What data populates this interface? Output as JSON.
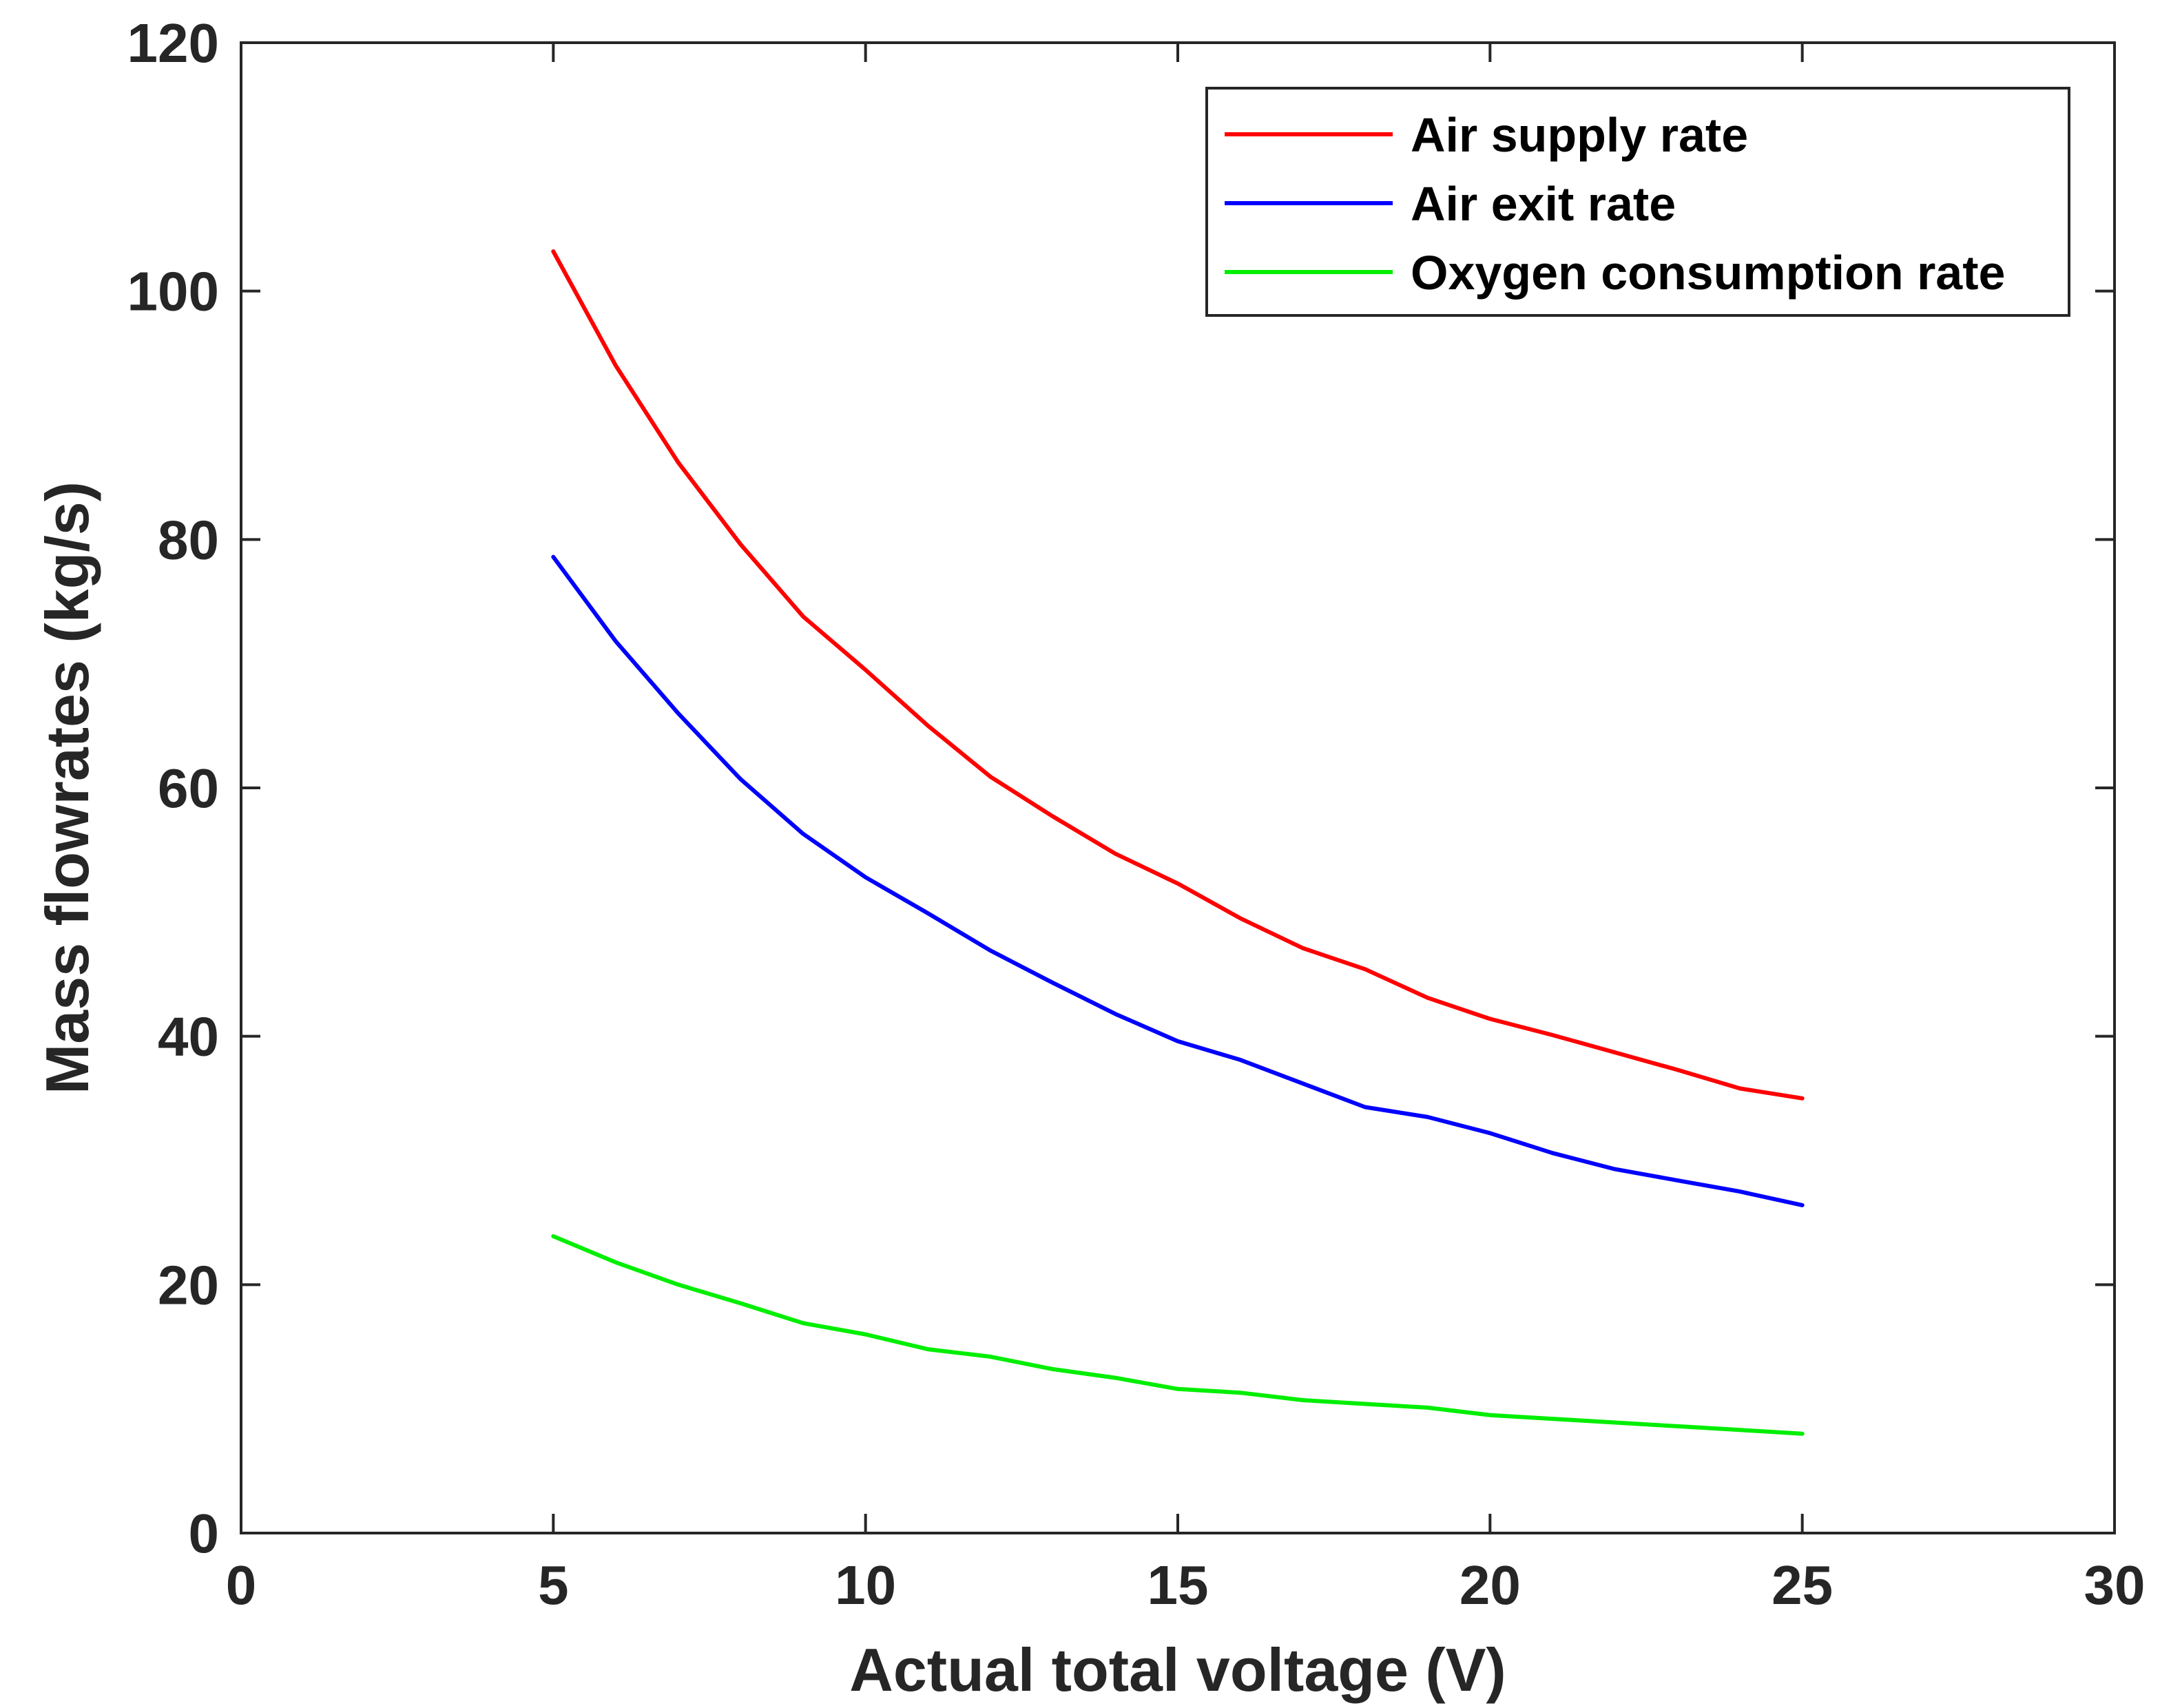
{
  "chart_data": {
    "type": "line",
    "title": "",
    "xlabel": "Actual total voltage (V)",
    "ylabel": "Mass flowrates (kg/s)",
    "xlim": [
      0,
      30
    ],
    "ylim": [
      0,
      120
    ],
    "xticks": [
      "0",
      "5",
      "10",
      "15",
      "20",
      "25",
      "30"
    ],
    "yticks": [
      "0",
      "20",
      "40",
      "60",
      "80",
      "100",
      "120"
    ],
    "grid": false,
    "legend_position": "top-right",
    "x": [
      5,
      6,
      7,
      8,
      9,
      10,
      11,
      12,
      13,
      14,
      15,
      16,
      17,
      18,
      19,
      20,
      21,
      22,
      23,
      24,
      25
    ],
    "series": [
      {
        "name": "Air supply rate",
        "color": "#ff0000",
        "values": [
          103.2,
          94.0,
          86.2,
          79.6,
          73.8,
          69.5,
          65.0,
          60.9,
          57.7,
          54.7,
          52.3,
          49.5,
          47.1,
          45.4,
          43.1,
          41.4,
          40.1,
          38.7,
          37.3,
          35.8,
          35.0
        ]
      },
      {
        "name": "Air exit rate",
        "color": "#0000ff",
        "values": [
          78.6,
          71.8,
          66.0,
          60.7,
          56.3,
          52.8,
          49.9,
          46.9,
          44.3,
          41.8,
          39.6,
          38.1,
          36.2,
          34.3,
          33.5,
          32.2,
          30.6,
          29.3,
          28.4,
          27.5,
          26.4
        ]
      },
      {
        "name": "Oxygen consumption rate",
        "color": "#00ee00",
        "values": [
          23.9,
          21.8,
          20.0,
          18.5,
          16.9,
          16.0,
          14.8,
          14.2,
          13.2,
          12.5,
          11.6,
          11.3,
          10.7,
          10.4,
          10.1,
          9.5,
          9.2,
          8.9,
          8.6,
          8.3,
          8.0
        ]
      }
    ]
  }
}
